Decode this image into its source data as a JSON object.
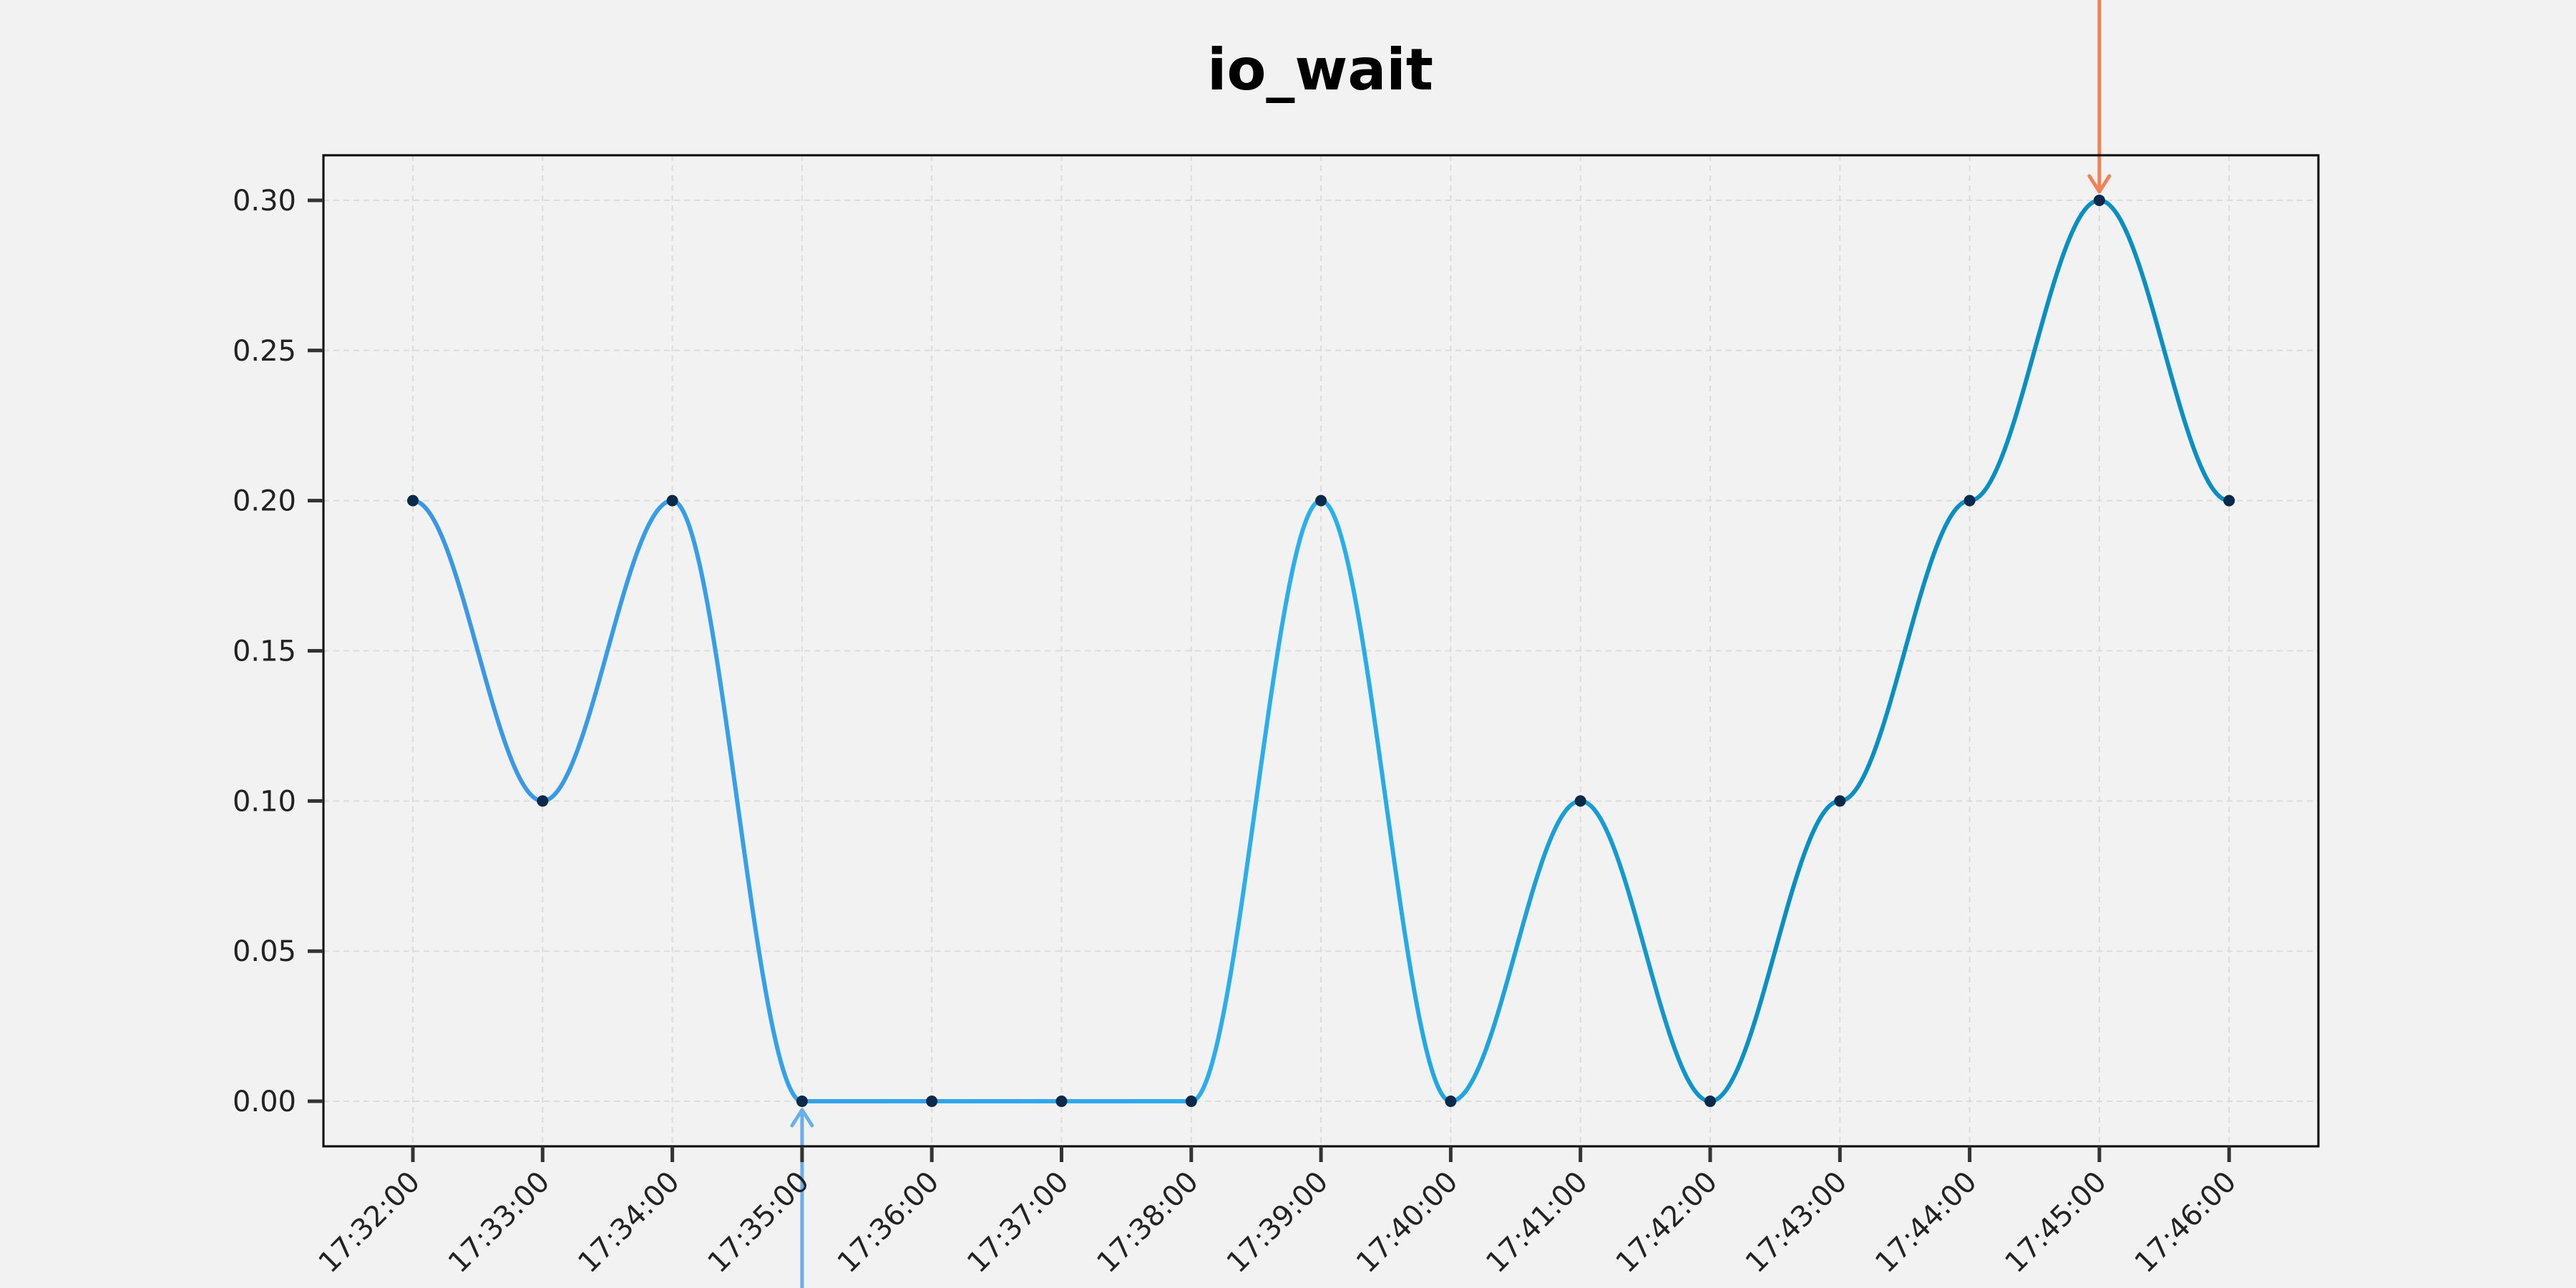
{
  "chart_data": {
    "type": "line",
    "title": "io_wait",
    "xlabel": "",
    "ylabel": "",
    "categories": [
      "17:32:00",
      "17:33:00",
      "17:34:00",
      "17:35:00",
      "17:36:00",
      "17:37:00",
      "17:38:00",
      "17:39:00",
      "17:40:00",
      "17:41:00",
      "17:42:00",
      "17:43:00",
      "17:44:00",
      "17:45:00",
      "17:46:00"
    ],
    "values": [
      0.2,
      0.1,
      0.2,
      0.0,
      0.0,
      0.0,
      0.0,
      0.2,
      0.0,
      0.1,
      0.0,
      0.1,
      0.2,
      0.3,
      0.2
    ],
    "ylim": [
      -0.015,
      0.315
    ],
    "yticks": [
      "0.00",
      "0.05",
      "0.10",
      "0.15",
      "0.20",
      "0.25",
      "0.30"
    ],
    "grid": true,
    "legend": "none",
    "annotations": [
      {
        "type": "arrow-up",
        "at_index": 3,
        "value": 0.0,
        "color": "#6aaee8"
      },
      {
        "type": "arrow-down",
        "at_index": 13,
        "value": 0.3,
        "color": "#f0825a"
      }
    ],
    "colors": {
      "line_start": "#3b96e6",
      "line_mid": "#2ab0ec",
      "line_end": "#0a8fc2",
      "marker": "#0b2a4a",
      "grid": "#dcdcdc",
      "axis": "#000000",
      "background": "#f2f2f2"
    }
  }
}
